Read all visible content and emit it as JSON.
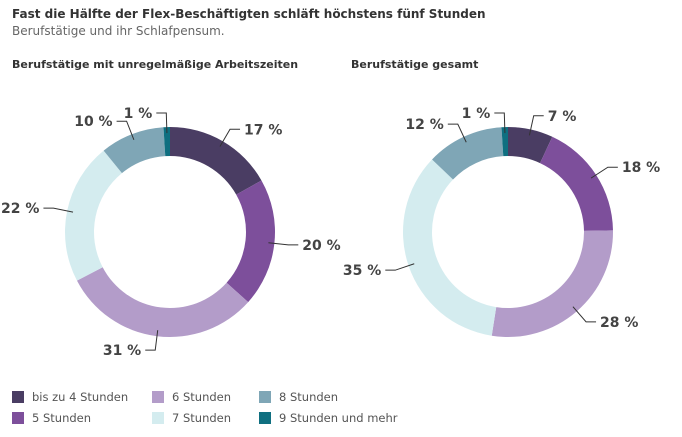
{
  "title": "Fast die Hälfte der Flex-Beschäftigten schläft höchstens fünf Stunden",
  "subtitle": "Berufstätige und ihr Schlafpensum.",
  "chart_data": [
    {
      "type": "pie",
      "title": "Berufstätige mit unregelmäßige Arbeitszeiten",
      "categories": [
        "bis zu 4 Stunden",
        "5 Stunden",
        "6 Stunden",
        "7 Stunden",
        "8 Stunden",
        "9 Stunden und mehr"
      ],
      "values": [
        17,
        20,
        31,
        22,
        10,
        1
      ],
      "labels": [
        "17 %",
        "20 %",
        "31 %",
        "22 %",
        "10 %",
        "1 %"
      ]
    },
    {
      "type": "pie",
      "title": "Berufstätige gesamt",
      "categories": [
        "bis zu 4 Stunden",
        "5 Stunden",
        "6 Stunden",
        "7 Stunden",
        "8 Stunden",
        "9 Stunden und mehr"
      ],
      "values": [
        7,
        18,
        28,
        35,
        12,
        1
      ],
      "labels": [
        "7 %",
        "18 %",
        "28 %",
        "35 %",
        "12 %",
        "1 %"
      ]
    }
  ],
  "colors": [
    "#4a3d63",
    "#7d4f9b",
    "#b39cc9",
    "#d4ecef",
    "#7fa6b6",
    "#0f6f80"
  ],
  "legend": [
    "bis zu 4 Stunden",
    "6 Stunden",
    "8 Stunden",
    "5 Stunden",
    "7 Stunden",
    "9 Stunden und mehr"
  ],
  "legend_color_idx": [
    0,
    2,
    4,
    1,
    3,
    5
  ]
}
